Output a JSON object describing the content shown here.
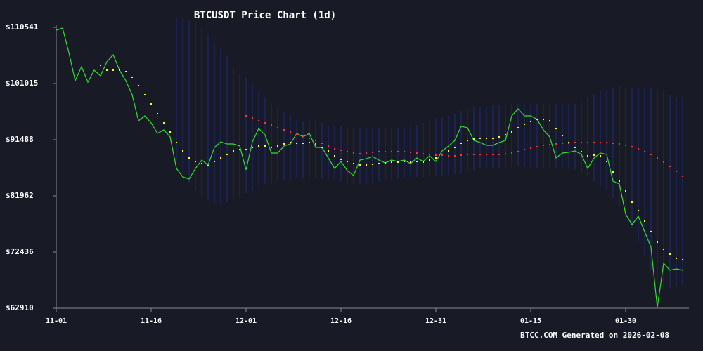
{
  "chart_data": {
    "type": "line",
    "title": "BTCUSDT Price Chart (1d)",
    "footer": "BTCC.COM Generated on 2026-02-08",
    "x": [
      "11-01",
      "11-02",
      "11-03",
      "11-04",
      "11-05",
      "11-06",
      "11-07",
      "11-08",
      "11-09",
      "11-10",
      "11-11",
      "11-12",
      "11-13",
      "11-14",
      "11-15",
      "11-16",
      "11-17",
      "11-18",
      "11-19",
      "11-20",
      "11-21",
      "11-22",
      "11-23",
      "11-24",
      "11-25",
      "11-26",
      "11-27",
      "11-28",
      "11-29",
      "11-30",
      "12-01",
      "12-02",
      "12-03",
      "12-04",
      "12-05",
      "12-06",
      "12-07",
      "12-08",
      "12-09",
      "12-10",
      "12-11",
      "12-12",
      "12-13",
      "12-14",
      "12-15",
      "12-16",
      "12-17",
      "12-18",
      "12-19",
      "12-20",
      "12-21",
      "12-22",
      "12-23",
      "12-24",
      "12-25",
      "12-26",
      "12-27",
      "12-28",
      "12-29",
      "12-30",
      "12-31",
      "01-01",
      "01-02",
      "01-03",
      "01-04",
      "01-05",
      "01-06",
      "01-07",
      "01-08",
      "01-09",
      "01-10",
      "01-11",
      "01-12",
      "01-13",
      "01-14",
      "01-15",
      "01-16",
      "01-17",
      "01-18",
      "01-19",
      "01-20",
      "01-21",
      "01-22",
      "01-23",
      "01-24",
      "01-25",
      "01-26",
      "01-27",
      "01-28",
      "01-29",
      "01-30",
      "01-31",
      "02-01",
      "02-02",
      "02-03",
      "02-04",
      "02-05",
      "02-06",
      "02-07",
      "02-08"
    ],
    "xticks": [
      "11-01",
      "11-16",
      "12-01",
      "12-16",
      "12-31",
      "01-15",
      "01-30"
    ],
    "ylim": [
      62910,
      110541
    ],
    "yticks": [
      {
        "value": 62910,
        "label": "$62910"
      },
      {
        "value": 72436,
        "label": "$72436"
      },
      {
        "value": 81962,
        "label": "$81962"
      },
      {
        "value": 91488,
        "label": "$91488"
      },
      {
        "value": 101015,
        "label": "$101015"
      },
      {
        "value": 110541,
        "label": "$110541"
      }
    ],
    "bands": {
      "color": "#1f2a7a",
      "upper": [
        null,
        null,
        null,
        null,
        null,
        null,
        null,
        null,
        null,
        null,
        null,
        null,
        null,
        null,
        null,
        null,
        null,
        null,
        null,
        112210,
        112210,
        111850,
        111380,
        110420,
        109230,
        108040,
        106850,
        105660,
        103870,
        102680,
        102090,
        100900,
        99710,
        98510,
        97320,
        96730,
        96130,
        95540,
        94940,
        94700,
        94700,
        94700,
        94350,
        93990,
        93750,
        93750,
        93510,
        93510,
        93510,
        93390,
        93390,
        93390,
        93390,
        93390,
        93510,
        93510,
        93750,
        93990,
        94350,
        94700,
        94940,
        95180,
        95540,
        95890,
        96370,
        96730,
        96970,
        97090,
        97090,
        97320,
        97320,
        97320,
        97560,
        97560,
        97560,
        97560,
        97560,
        97560,
        97560,
        97560,
        97560,
        97560,
        97560,
        97920,
        98510,
        99110,
        99710,
        99940,
        100300,
        100540,
        100300,
        100300,
        100300,
        100300,
        100300,
        100300,
        99710,
        99110,
        98510,
        98510
      ],
      "lower": [
        null,
        null,
        null,
        null,
        null,
        null,
        null,
        null,
        null,
        null,
        null,
        null,
        null,
        null,
        null,
        null,
        null,
        null,
        null,
        87800,
        86010,
        84220,
        83030,
        81840,
        81250,
        80650,
        80650,
        80890,
        81250,
        81840,
        82440,
        83030,
        83630,
        83990,
        84220,
        84460,
        84700,
        84820,
        84940,
        84940,
        84940,
        84940,
        84940,
        84940,
        84700,
        84460,
        84220,
        83990,
        83990,
        83990,
        84220,
        84460,
        84700,
        84820,
        84940,
        85060,
        85180,
        85180,
        85180,
        85180,
        85420,
        85420,
        85420,
        85650,
        85890,
        86130,
        86370,
        86610,
        86610,
        86610,
        86610,
        86610,
        86840,
        87080,
        87080,
        86840,
        86610,
        86610,
        86610,
        86610,
        86610,
        86610,
        86370,
        86010,
        85420,
        84460,
        83630,
        82800,
        81600,
        80060,
        78270,
        76490,
        74100,
        71720,
        69340,
        66960,
        66360,
        66360,
        66600,
        66960
      ]
    },
    "series": [
      {
        "style": "line",
        "color": "#33dd33",
        "values": [
          110065,
          110420,
          106250,
          101490,
          103870,
          101250,
          103280,
          102330,
          104700,
          105900,
          103280,
          101490,
          99110,
          94700,
          95540,
          94350,
          92560,
          93160,
          91970,
          86610,
          85180,
          84820,
          86610,
          88030,
          87200,
          90180,
          91130,
          90770,
          90770,
          90420,
          86370,
          91130,
          93390,
          92320,
          89230,
          89230,
          90420,
          90770,
          92560,
          91970,
          92560,
          90180,
          90180,
          88390,
          86610,
          87800,
          86250,
          85420,
          88030,
          88270,
          88630,
          88030,
          87560,
          88030,
          87800,
          88030,
          87440,
          88390,
          87800,
          88750,
          87800,
          89590,
          90420,
          91370,
          93760,
          93520,
          91370,
          91010,
          90540,
          90540,
          91010,
          91370,
          95540,
          96730,
          95540,
          95540,
          94940,
          93160,
          91970,
          88390,
          89230,
          89350,
          89590,
          89000,
          86610,
          88390,
          89230,
          89000,
          84460,
          83990,
          78870,
          77080,
          78510,
          75890,
          73270,
          63030,
          70530,
          69340,
          69580,
          69340
        ]
      },
      {
        "style": "dots",
        "color": "#ffff33",
        "values": [
          null,
          null,
          null,
          null,
          null,
          null,
          null,
          104110,
          103280,
          103280,
          103280,
          103040,
          102090,
          100660,
          99110,
          97560,
          95900,
          94350,
          92800,
          91010,
          89580,
          88390,
          87800,
          87440,
          87080,
          87800,
          88390,
          88990,
          89580,
          89820,
          89820,
          90180,
          90420,
          90420,
          90180,
          90420,
          90780,
          91010,
          90890,
          90890,
          91010,
          90780,
          90180,
          89580,
          88750,
          88160,
          87800,
          87440,
          87200,
          87200,
          87320,
          87440,
          87560,
          87680,
          87680,
          87800,
          87680,
          87800,
          87680,
          88040,
          88390,
          88990,
          89580,
          90180,
          90890,
          91370,
          91610,
          91730,
          91730,
          91730,
          91970,
          92320,
          92800,
          93510,
          94110,
          94590,
          94940,
          94940,
          94700,
          93390,
          92200,
          91010,
          90180,
          89470,
          88750,
          88870,
          88750,
          87800,
          86010,
          84460,
          82800,
          80890,
          79460,
          77680,
          75890,
          74100,
          72910,
          72080,
          71370,
          71130
        ]
      },
      {
        "style": "dots",
        "color": "#ff3333",
        "values": [
          null,
          null,
          null,
          null,
          null,
          null,
          null,
          null,
          null,
          null,
          null,
          null,
          null,
          null,
          null,
          null,
          null,
          null,
          null,
          null,
          null,
          null,
          null,
          null,
          null,
          null,
          null,
          null,
          null,
          null,
          95540,
          95180,
          94700,
          94350,
          93990,
          93510,
          93160,
          92800,
          92440,
          92090,
          91730,
          91370,
          90890,
          90420,
          89940,
          89700,
          89470,
          89230,
          89110,
          89230,
          89350,
          89470,
          89470,
          89470,
          89470,
          89470,
          89350,
          89230,
          89110,
          88990,
          88870,
          88870,
          88750,
          88750,
          88870,
          88990,
          88990,
          88990,
          88990,
          88990,
          88990,
          89110,
          89230,
          89470,
          89820,
          90060,
          90300,
          90540,
          90660,
          90780,
          90890,
          90890,
          91010,
          91010,
          91010,
          91010,
          91010,
          91010,
          90890,
          90780,
          90540,
          90300,
          89940,
          89470,
          88990,
          88390,
          87680,
          86960,
          86130,
          85300
        ]
      }
    ]
  }
}
